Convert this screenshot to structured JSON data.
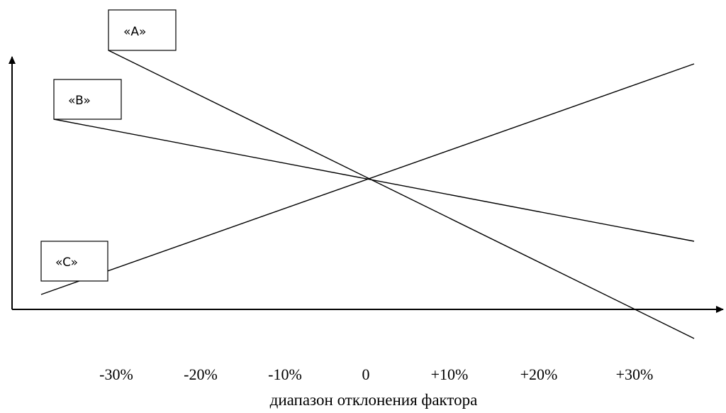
{
  "diagram": {
    "lines": [
      {
        "label": "«A»",
        "direction": "decreasing-steep"
      },
      {
        "label": "«B»",
        "direction": "decreasing-gentle"
      },
      {
        "label": "«C»",
        "direction": "increasing"
      }
    ],
    "x_ticks": [
      "-30%",
      "-20%",
      "-10%",
      "0",
      "+10%",
      "+20%",
      "+30%"
    ],
    "x_axis_title": "диапазон отклонения фактора",
    "colors": {
      "stroke": "#000000",
      "background": "#ffffff"
    }
  }
}
